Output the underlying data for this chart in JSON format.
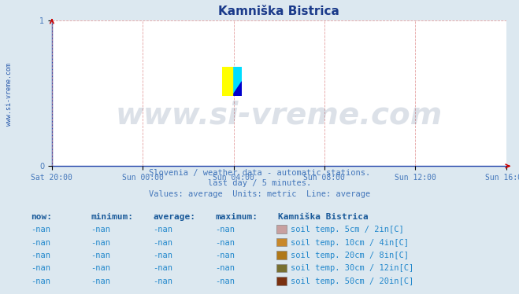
{
  "title": "Kamniška Bistrica",
  "title_color": "#1a3a8a",
  "title_fontsize": 11,
  "background_color": "#dce8f0",
  "plot_bg_color": "#ffffff",
  "watermark_text": "www.si-vreme.com",
  "watermark_color": "#1a3a6b",
  "watermark_alpha": 0.15,
  "watermark_fontsize": 28,
  "sidebar_text": "www.si-vreme.com",
  "sidebar_color": "#2255aa",
  "sidebar_fontsize": 6,
  "xlim": [
    0,
    1
  ],
  "ylim": [
    0,
    1
  ],
  "yticks": [
    0,
    1
  ],
  "xtick_labels": [
    "Sat 20:00",
    "Sun 00:00",
    "Sun 04:00",
    "Sun 08:00",
    "Sun 12:00",
    "Sun 16:00"
  ],
  "xtick_positions": [
    0.0,
    0.2,
    0.4,
    0.6,
    0.8,
    1.0
  ],
  "xtick_color": "#4477bb",
  "ytick_color": "#4477bb",
  "axis_color": "#2244aa",
  "grid_color": "#dd8888",
  "grid_style": "--",
  "grid_alpha": 0.8,
  "footer_lines": [
    "Slovenia / weather data - automatic stations.",
    "last day / 5 minutes.",
    "Values: average  Units: metric  Line: average"
  ],
  "footer_color": "#4477bb",
  "footer_fontsize": 7.5,
  "table_header": [
    "now:",
    "minimum:",
    "average:",
    "maximum:",
    "Kamniška Bistrica"
  ],
  "table_header_bold": [
    true,
    true,
    true,
    true,
    true
  ],
  "table_header_color": "#1a5a9a",
  "table_header_fontsize": 8,
  "table_rows": [
    [
      "-nan",
      "-nan",
      "-nan",
      "-nan",
      "soil temp. 5cm / 2in[C]"
    ],
    [
      "-nan",
      "-nan",
      "-nan",
      "-nan",
      "soil temp. 10cm / 4in[C]"
    ],
    [
      "-nan",
      "-nan",
      "-nan",
      "-nan",
      "soil temp. 20cm / 8in[C]"
    ],
    [
      "-nan",
      "-nan",
      "-nan",
      "-nan",
      "soil temp. 30cm / 12in[C]"
    ],
    [
      "-nan",
      "-nan",
      "-nan",
      "-nan",
      "soil temp. 50cm / 20in[C]"
    ]
  ],
  "legend_colors": [
    "#c8a0a0",
    "#c8882a",
    "#b07818",
    "#787030",
    "#7a3010"
  ],
  "table_color": "#2288cc",
  "table_fontsize": 7.5,
  "arrow_color": "#cc0000",
  "logo_colors": [
    "#ffff00",
    "#00ccff",
    "#0000bb"
  ]
}
